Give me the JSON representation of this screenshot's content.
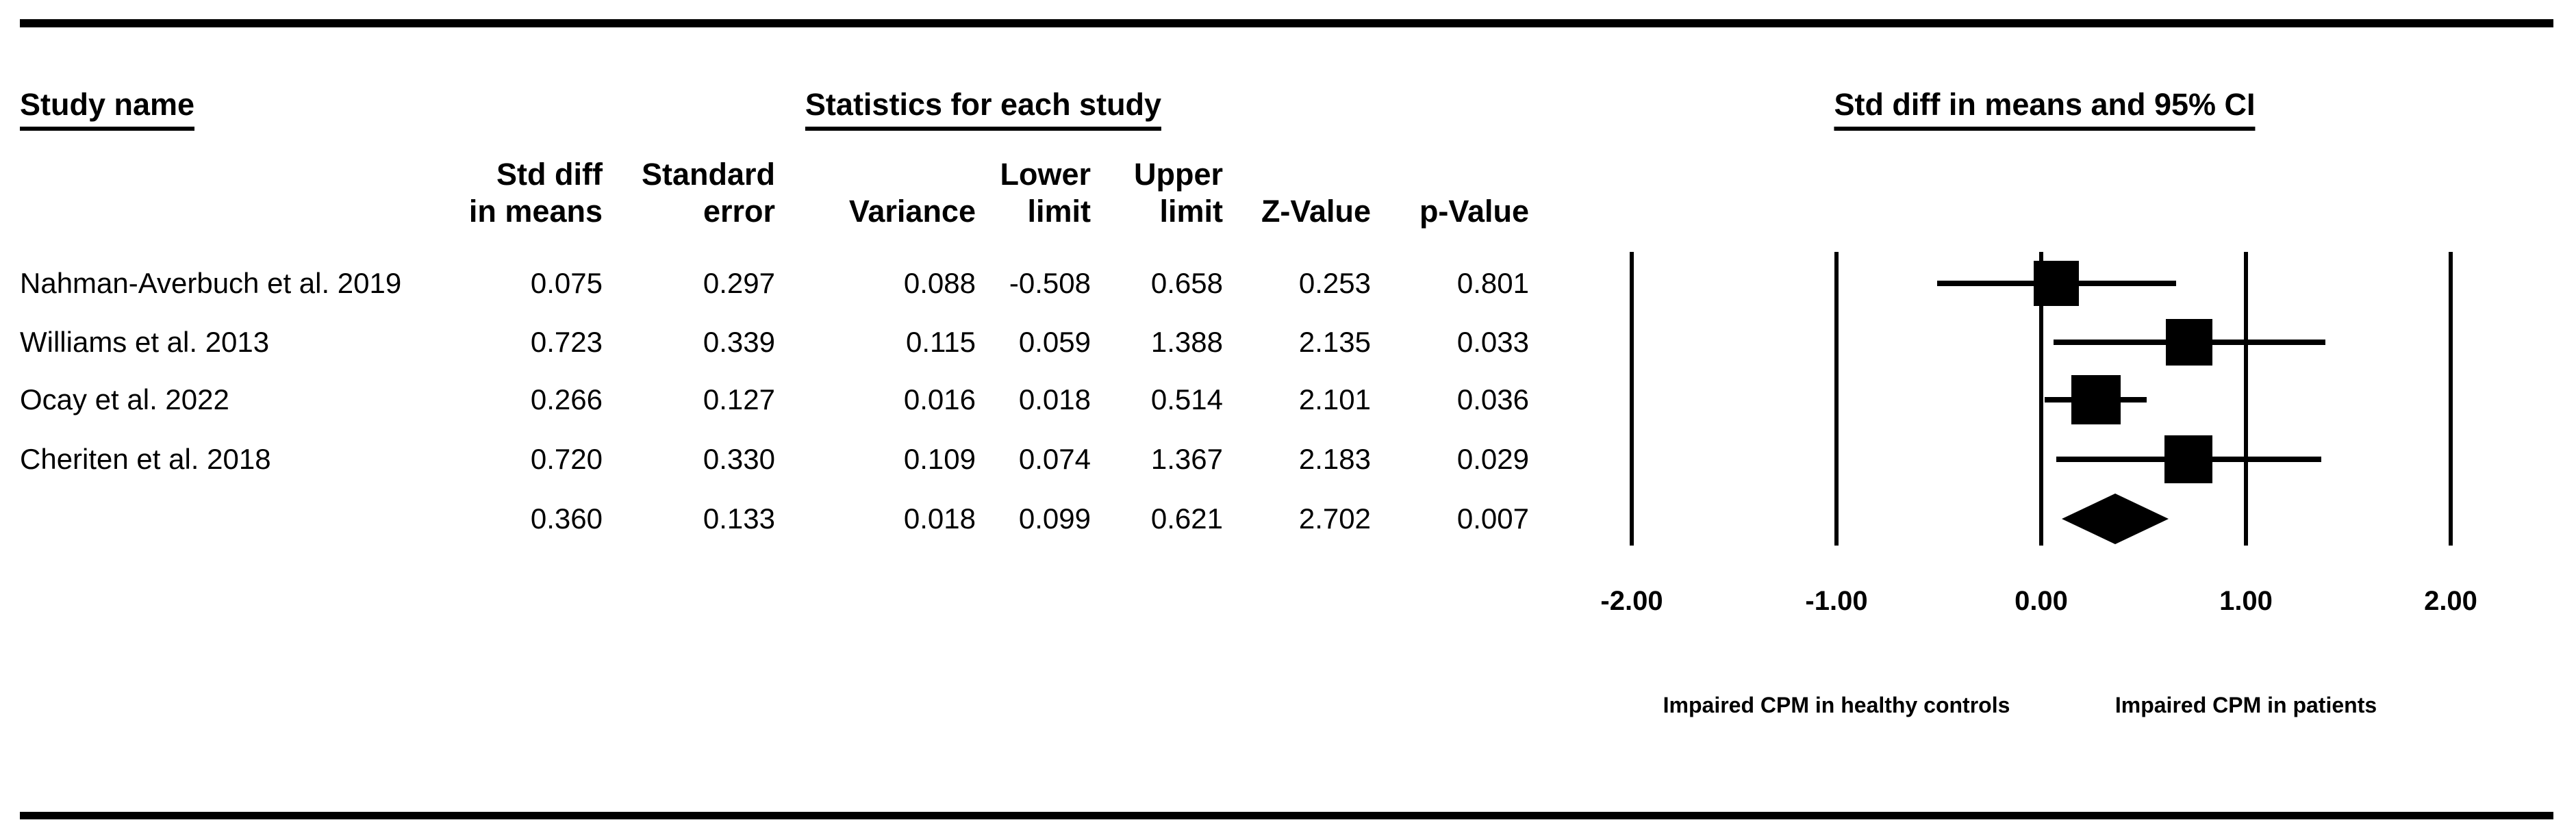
{
  "titles": {
    "study_name": "Study name",
    "statistics": "Statistics for each study",
    "plot": "Std diff in means and 95% CI"
  },
  "table": {
    "columns": [
      "Std diff\nin means",
      "Standard\nerror",
      "Variance",
      "Lower\nlimit",
      "Upper\nlimit",
      "Z-Value",
      "p-Value"
    ],
    "rows": [
      {
        "study": "Nahman-Averbuch et al. 2019",
        "values": [
          "0.075",
          "0.297",
          "0.088",
          "-0.508",
          "0.658",
          "0.253",
          "0.801"
        ]
      },
      {
        "study": "Williams et al. 2013",
        "values": [
          "0.723",
          "0.339",
          "0.115",
          "0.059",
          "1.388",
          "2.135",
          "0.033"
        ]
      },
      {
        "study": "Ocay et al. 2022",
        "values": [
          "0.266",
          "0.127",
          "0.016",
          "0.018",
          "0.514",
          "2.101",
          "0.036"
        ]
      },
      {
        "study": "Cheriten et al. 2018",
        "values": [
          "0.720",
          "0.330",
          "0.109",
          "0.074",
          "1.367",
          "2.183",
          "0.029"
        ]
      }
    ],
    "summary_row": {
      "study": "",
      "values": [
        "0.360",
        "0.133",
        "0.018",
        "0.099",
        "0.621",
        "2.702",
        "0.007"
      ]
    }
  },
  "chart_data": {
    "type": "forest",
    "title": "Std diff in means and 95% CI",
    "x_ticks": [
      -2,
      -1,
      0,
      1,
      2
    ],
    "x_tick_labels": [
      "-2.00",
      "-1.00",
      "0.00",
      "1.00",
      "2.00"
    ],
    "xlim": [
      -2.3,
      2.45
    ],
    "grid": "vertical-lines",
    "studies": [
      {
        "name": "Nahman-Averbuch et al. 2019",
        "mean": 0.075,
        "lower": -0.508,
        "upper": 0.658,
        "marker_size": 66
      },
      {
        "name": "Williams et al. 2013",
        "mean": 0.723,
        "lower": 0.059,
        "upper": 1.388,
        "marker_size": 68
      },
      {
        "name": "Ocay et al. 2022",
        "mean": 0.266,
        "lower": 0.018,
        "upper": 0.514,
        "marker_size": 72
      },
      {
        "name": "Cheriten et al. 2018",
        "mean": 0.72,
        "lower": 0.074,
        "upper": 1.367,
        "marker_size": 70
      }
    ],
    "summary": {
      "mean": 0.36,
      "lower": 0.099,
      "upper": 0.621
    },
    "captions": {
      "left": "Impaired CPM in healthy controls",
      "right": "Impaired CPM in patients"
    },
    "colors": {
      "marker": "#000000",
      "line": "#000000",
      "text": "#000000",
      "background": "#ffffff"
    }
  }
}
